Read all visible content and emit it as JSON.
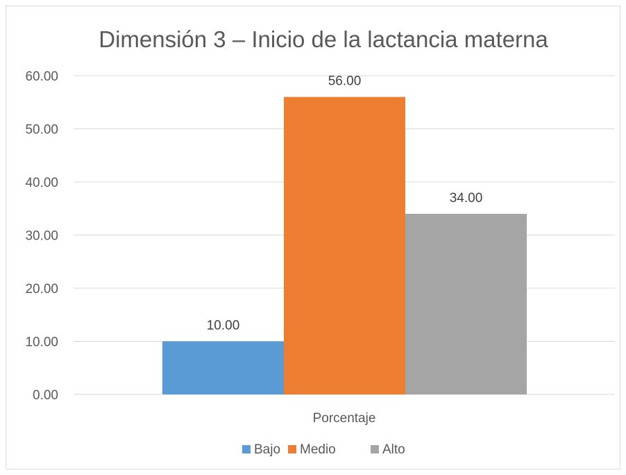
{
  "chart_data": {
    "type": "bar",
    "title": "Dimensión 3 – Inicio de la lactancia materna",
    "categories": [
      "Porcentaje"
    ],
    "series": [
      {
        "name": "Bajo",
        "values": [
          10.0
        ],
        "color": "#5b9bd5"
      },
      {
        "name": "Medio",
        "values": [
          56.0
        ],
        "color": "#ed7d31"
      },
      {
        "name": "Alto",
        "values": [
          34.0
        ],
        "color": "#a5a5a5"
      }
    ],
    "data_labels": [
      "10.00",
      "56.00",
      "34.00"
    ],
    "y_ticks": [
      "0.00",
      "10.00",
      "20.00",
      "30.00",
      "40.00",
      "50.00",
      "60.00"
    ],
    "ylim": [
      0,
      60
    ],
    "grid": true,
    "legend_position": "bottom",
    "colors": {
      "gridline": "#d9d9d9",
      "text": "#595959"
    }
  }
}
